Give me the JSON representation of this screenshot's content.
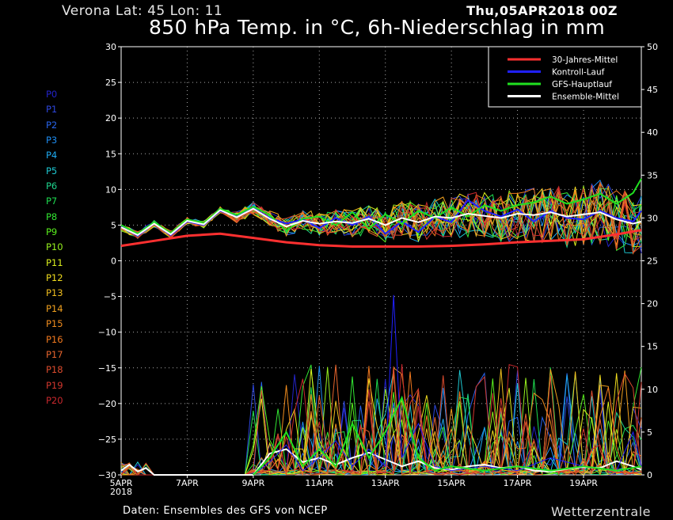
{
  "header": {
    "location": "Verona   Lat: 45  Lon: 11",
    "date": "Thu,05APR2018 00Z",
    "title": "850 hPa Temp. in °C, 6h-Niederschlag in mm"
  },
  "footer": {
    "credit": "Daten: Ensembles des GFS von NCEP",
    "brand": "Wetterzentrale"
  },
  "members": [
    {
      "label": "P0",
      "color": "#2323c8"
    },
    {
      "label": "P1",
      "color": "#2d46dc"
    },
    {
      "label": "P2",
      "color": "#2864ec"
    },
    {
      "label": "P3",
      "color": "#1e8cf0"
    },
    {
      "label": "P4",
      "color": "#1eaaf0"
    },
    {
      "label": "P5",
      "color": "#1ec8d2"
    },
    {
      "label": "P6",
      "color": "#1ed28c"
    },
    {
      "label": "P7",
      "color": "#1edc50"
    },
    {
      "label": "P8",
      "color": "#32e632"
    },
    {
      "label": "P9",
      "color": "#5af01e"
    },
    {
      "label": "P10",
      "color": "#96f01e"
    },
    {
      "label": "P11",
      "color": "#dcf01e"
    },
    {
      "label": "P12",
      "color": "#f0dc1e"
    },
    {
      "label": "P13",
      "color": "#f0be1e"
    },
    {
      "label": "P14",
      "color": "#f0a01e"
    },
    {
      "label": "P15",
      "color": "#f08c1e"
    },
    {
      "label": "P16",
      "color": "#f0781e"
    },
    {
      "label": "P17",
      "color": "#e6642d"
    },
    {
      "label": "P18",
      "color": "#dc4b2d"
    },
    {
      "label": "P19",
      "color": "#d2372d"
    },
    {
      "label": "P20",
      "color": "#c8282d"
    }
  ],
  "chart_data": {
    "type": "line",
    "x_unit": "days from 05APR2018 00Z",
    "x_range": [
      0,
      15.75
    ],
    "x_ticks": [
      {
        "x": 0,
        "label": "5APR",
        "sub": "2018"
      },
      {
        "x": 2,
        "label": "7APR"
      },
      {
        "x": 4,
        "label": "9APR"
      },
      {
        "x": 6,
        "label": "11APR"
      },
      {
        "x": 8,
        "label": "13APR"
      },
      {
        "x": 10,
        "label": "15APR"
      },
      {
        "x": 12,
        "label": "17APR"
      },
      {
        "x": 14,
        "label": "19APR"
      }
    ],
    "y_left": {
      "range": [
        -30,
        30
      ],
      "ticks": [
        -30,
        -25,
        -20,
        -15,
        -10,
        -5,
        0,
        5,
        10,
        15,
        20,
        25,
        30
      ]
    },
    "y_right": {
      "range": [
        0,
        50
      ],
      "ticks": [
        0,
        5,
        10,
        15,
        20,
        25,
        30,
        35,
        40,
        45,
        50
      ]
    },
    "grid": true,
    "legend_position": "top-right",
    "legend": [
      {
        "label": "30-Jahres-Mittel",
        "color": "#ff3030"
      },
      {
        "label": "Kontroll-Lauf",
        "color": "#2020ff"
      },
      {
        "label": "GFS-Hauptlauf",
        "color": "#20e020"
      },
      {
        "label": "Ensemble-Mittel",
        "color": "#ffffff"
      }
    ],
    "temperature_series": [
      {
        "name": "30-Jahres-Mittel",
        "color": "#ff3030",
        "width": 3,
        "x": [
          0,
          1,
          2,
          3,
          4,
          5,
          6,
          7,
          8,
          9,
          10,
          11,
          12,
          13,
          14,
          15,
          15.75
        ],
        "y": [
          2.1,
          2.8,
          3.5,
          3.8,
          3.2,
          2.6,
          2.2,
          2.0,
          2.0,
          2.0,
          2.1,
          2.3,
          2.6,
          2.8,
          3.0,
          3.7,
          4.3
        ]
      },
      {
        "name": "Kontroll-Lauf",
        "color": "#2020ff",
        "width": 2,
        "x": [
          0,
          0.5,
          1,
          1.5,
          2,
          2.5,
          3,
          3.5,
          4,
          4.5,
          5,
          5.5,
          6,
          6.5,
          7,
          7.5,
          8,
          8.5,
          9,
          9.5,
          10,
          10.5,
          11,
          11.5,
          12,
          12.5,
          13,
          13.5,
          14,
          14.5,
          15,
          15.5,
          15.75
        ],
        "y": [
          4.8,
          3.5,
          5.2,
          3.6,
          5.5,
          5.0,
          7.0,
          6.2,
          7.4,
          6.0,
          5.2,
          5.8,
          4.6,
          6.0,
          5.0,
          6.2,
          3.8,
          5.5,
          4.0,
          6.2,
          5.4,
          8.5,
          7.0,
          6.2,
          7.2,
          5.5,
          7.0,
          6.0,
          5.8,
          7.0,
          6.0,
          5.5,
          7.0
        ]
      },
      {
        "name": "GFS-Hauptlauf",
        "color": "#20e020",
        "width": 2,
        "x": [
          0,
          0.5,
          1,
          1.5,
          2,
          2.5,
          3,
          3.5,
          4,
          4.5,
          5,
          5.5,
          6,
          6.5,
          7,
          7.5,
          8,
          8.5,
          9,
          9.5,
          10,
          10.5,
          11,
          11.5,
          12,
          12.5,
          13,
          13.5,
          14,
          14.5,
          15,
          15.5,
          15.75
        ],
        "y": [
          5.0,
          3.8,
          5.4,
          3.9,
          5.8,
          5.3,
          7.3,
          6.4,
          7.6,
          6.4,
          4.2,
          5.9,
          6.2,
          5.0,
          6.8,
          4.5,
          6.5,
          5.2,
          7.0,
          6.0,
          7.5,
          6.2,
          7.8,
          7.0,
          7.8,
          8.2,
          9.0,
          8.0,
          8.6,
          9.4,
          8.0,
          9.5,
          11.5
        ]
      },
      {
        "name": "Ensemble-Mittel",
        "color": "#ffffff",
        "width": 2,
        "x": [
          0,
          0.5,
          1,
          1.5,
          2,
          2.5,
          3,
          3.5,
          4,
          4.5,
          5,
          5.5,
          6,
          6.5,
          7,
          7.5,
          8,
          8.5,
          9,
          9.5,
          10,
          10.5,
          11,
          11.5,
          12,
          12.5,
          13,
          13.5,
          14,
          14.5,
          15,
          15.5,
          15.75
        ],
        "y": [
          4.7,
          3.6,
          5.2,
          3.7,
          5.6,
          5.1,
          7.1,
          6.1,
          7.3,
          5.9,
          4.8,
          5.6,
          5.2,
          5.5,
          5.3,
          5.9,
          5.0,
          6.0,
          5.4,
          6.2,
          6.0,
          6.6,
          6.3,
          6.0,
          6.6,
          6.4,
          6.8,
          6.2,
          6.5,
          6.8,
          5.8,
          5.2,
          5.5
        ]
      }
    ],
    "precipitation_series": [
      {
        "name": "Ensemble-Mittel",
        "color": "#ffffff",
        "width": 2,
        "x": [
          0,
          0.25,
          0.5,
          0.75,
          1,
          4,
          4.5,
          5,
          5.5,
          6,
          6.5,
          7,
          7.5,
          8,
          8.5,
          9,
          9.5,
          10,
          10.5,
          11,
          11.5,
          12,
          12.5,
          13,
          13.5,
          14,
          14.5,
          15,
          15.5,
          15.75
        ],
        "y": [
          0.5,
          1.2,
          0.4,
          0.8,
          0,
          0,
          2.5,
          3.0,
          1.5,
          2.0,
          1.2,
          2.0,
          2.6,
          1.8,
          1.0,
          1.6,
          0.8,
          0.6,
          1.0,
          1.2,
          0.8,
          1.0,
          0.5,
          0.4,
          0.7,
          0.9,
          0.8,
          1.6,
          1.0,
          0.6
        ]
      },
      {
        "name": "Kontroll-Lauf",
        "color": "#2020ff",
        "width": 1,
        "x": [
          4,
          4.5,
          5,
          5.5,
          6,
          6.5,
          7,
          7.5,
          8,
          8.25,
          8.5,
          9,
          9.5,
          10,
          11,
          12,
          13,
          14,
          15,
          15.5,
          15.75
        ],
        "y": [
          0,
          1.5,
          3.5,
          0.5,
          2.0,
          4.0,
          1.0,
          3.0,
          1.0,
          21.0,
          2.0,
          6.0,
          1.0,
          0.5,
          1.0,
          0.5,
          2.0,
          1.0,
          0.5,
          5.0,
          1.0
        ]
      },
      {
        "name": "GFS-Hauptlauf",
        "color": "#20e020",
        "width": 2,
        "x": [
          4,
          4.5,
          5,
          5.5,
          6,
          6.5,
          7,
          7.5,
          8,
          8.5,
          9,
          9.5,
          10,
          11,
          12,
          13,
          14,
          15,
          15.75
        ],
        "y": [
          0,
          2.0,
          5.0,
          1.0,
          3.0,
          1.0,
          6.0,
          2.0,
          5.0,
          9.0,
          2.0,
          0.5,
          1.0,
          0.5,
          1.0,
          0.5,
          1.0,
          0.5,
          1.0
        ]
      }
    ]
  }
}
